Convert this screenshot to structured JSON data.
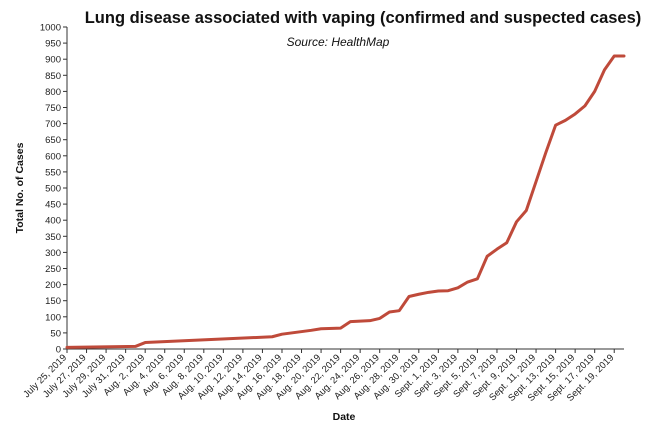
{
  "chart_data": {
    "type": "line",
    "title": "Lung disease associated with vaping (confirmed and suspected cases)",
    "subtitle": "Source: HealthMap",
    "xlabel": "Date",
    "ylabel": "Total No. of Cases",
    "ylim": [
      0,
      1000
    ],
    "y_ticks": [
      0,
      50,
      100,
      150,
      200,
      250,
      300,
      350,
      400,
      450,
      500,
      550,
      600,
      650,
      700,
      750,
      800,
      850,
      900,
      950,
      1000
    ],
    "x_range": [
      "July 25, 2019",
      "Sept. 20, 2019"
    ],
    "x_ticks": [
      "July 25, 2019",
      "July 27, 2019",
      "July 29, 2019",
      "July 31, 2019",
      "Aug. 2, 2019",
      "Aug. 4, 2019",
      "Aug. 6, 2019",
      "Aug. 8, 2019",
      "Aug. 10, 2019",
      "Aug. 12, 2019",
      "Aug. 14, 2019",
      "Aug. 16, 2019",
      "Aug. 18, 2019",
      "Aug. 20, 2019",
      "Aug. 22, 2019",
      "Aug. 24, 2019",
      "Aug. 26, 2019",
      "Aug. 28, 2019",
      "Aug. 30, 2019",
      "Sept. 1, 2019",
      "Sept. 3, 2019",
      "Sept. 5, 2019",
      "Sept. 7, 2019",
      "Sept. 9, 2019",
      "Sept. 11, 2019",
      "Sept. 13, 2019",
      "Sept. 15, 2019",
      "Sept. 17, 2019",
      "Sept. 19, 2019"
    ],
    "grid": false,
    "legend": "none",
    "series": [
      {
        "color": "#bf4a3a",
        "x": [
          "2019-07-25",
          "2019-08-01",
          "2019-08-02",
          "2019-08-15",
          "2019-08-16",
          "2019-08-19",
          "2019-08-20",
          "2019-08-22",
          "2019-08-23",
          "2019-08-25",
          "2019-08-26",
          "2019-08-27",
          "2019-08-28",
          "2019-08-29",
          "2019-08-30",
          "2019-08-31",
          "2019-09-01",
          "2019-09-02",
          "2019-09-03",
          "2019-09-04",
          "2019-09-05",
          "2019-09-06",
          "2019-09-07",
          "2019-09-08",
          "2019-09-09",
          "2019-09-10",
          "2019-09-11",
          "2019-09-12",
          "2019-09-13",
          "2019-09-14",
          "2019-09-15",
          "2019-09-16",
          "2019-09-17",
          "2019-09-18",
          "2019-09-19",
          "2019-09-20"
        ],
        "values": [
          5,
          8,
          20,
          38,
          46,
          58,
          63,
          65,
          85,
          88,
          95,
          115,
          119,
          163,
          170,
          176,
          180,
          181,
          190,
          208,
          218,
          288,
          310,
          330,
          395,
          430,
          520,
          610,
          695,
          710,
          730,
          755,
          800,
          867,
          910,
          910
        ]
      }
    ]
  }
}
